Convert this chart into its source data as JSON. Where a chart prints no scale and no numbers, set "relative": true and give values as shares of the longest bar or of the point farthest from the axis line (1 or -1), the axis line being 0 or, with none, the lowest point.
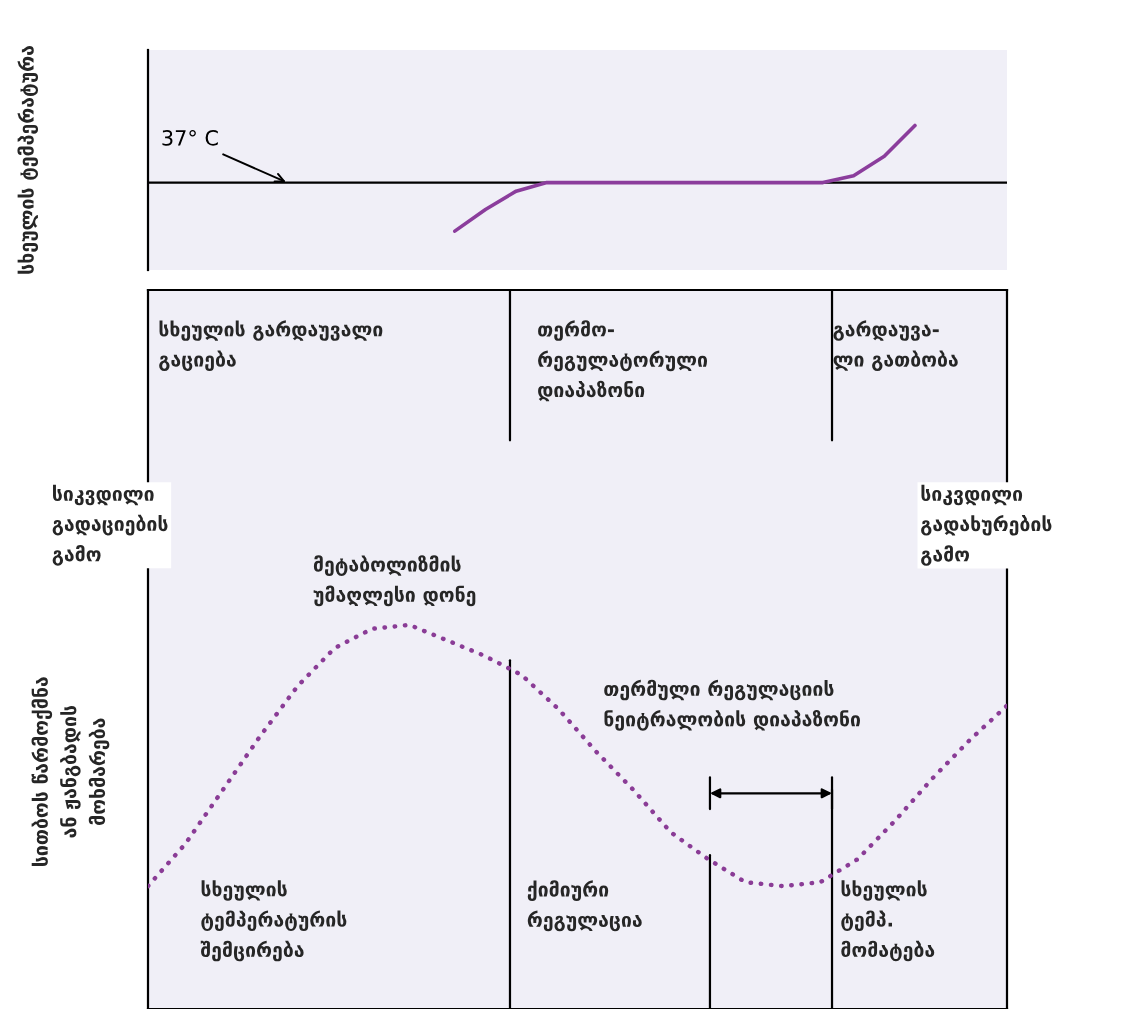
{
  "chart_data": [
    {
      "type": "line",
      "relative": true,
      "ylabel": "სხეულის ტემპერატურა",
      "grid": false,
      "marker": "none",
      "line_style": "solid",
      "categories": [
        null,
        null,
        null,
        null,
        null,
        null,
        null,
        null,
        null,
        null,
        null,
        null,
        null,
        null,
        null,
        null,
        null,
        null,
        null,
        null,
        null,
        null,
        null,
        null,
        null,
        null,
        null,
        null,
        null
      ],
      "series": [
        {
          "color": "#8b3d9c",
          "values": [
            null,
            null,
            null,
            null,
            null,
            null,
            null,
            null,
            null,
            null,
            -0.85,
            -0.47,
            -0.15,
            0,
            0,
            0,
            0,
            0,
            0,
            0,
            0,
            0,
            0,
            0.12,
            0.46,
            1,
            null,
            null,
            null
          ]
        }
      ],
      "ref_lines": [
        {
          "axis": "y",
          "value": 0,
          "label": "37° C",
          "color": "#000000"
        }
      ]
    },
    {
      "type": "line",
      "relative": true,
      "ylabel": "სითბოს წარმოქმნა\nან ჟანგბადის\nმოხმარება",
      "grid": false,
      "marker": "none",
      "line_style": "dotted",
      "categories": [
        null,
        null,
        null,
        null,
        null,
        null,
        null,
        null,
        null,
        null,
        null,
        null,
        null,
        null,
        null,
        null,
        null,
        null,
        null,
        null,
        null,
        null,
        null,
        null
      ],
      "series": [
        {
          "color": "#8a3c96",
          "values": [
            0.32,
            0.43,
            0.57,
            0.71,
            0.84,
            0.94,
            0.99,
            1,
            0.96,
            0.92,
            0.87,
            0.78,
            0.67,
            0.57,
            0.46,
            0.39,
            0.33,
            0.32,
            0.33,
            0.39,
            0.49,
            0.6,
            0.7,
            0.79
          ]
        }
      ],
      "annotations": [
        "სხეულის გარდაუვალი\nგაციება",
        "თერმო-\nრეგულატორული\nდიაპაზონი",
        "გარდაუვა-\nლი გათბობა",
        "სიკვდილი\nგადაციების\nგამო",
        "სიკვდილი\nგადახურების\nგამო",
        "მეტაბოლიზმის\nუმაღლესი დონე",
        "თერმული რეგულაციის\nნეიტრალობის დიაპაზონი",
        "სხეულის\nტემპერატურის\nშემცირება",
        "ქიმიური\nრეგულაცია",
        "სხეულის\nტემპ.\nმომატება"
      ]
    }
  ]
}
